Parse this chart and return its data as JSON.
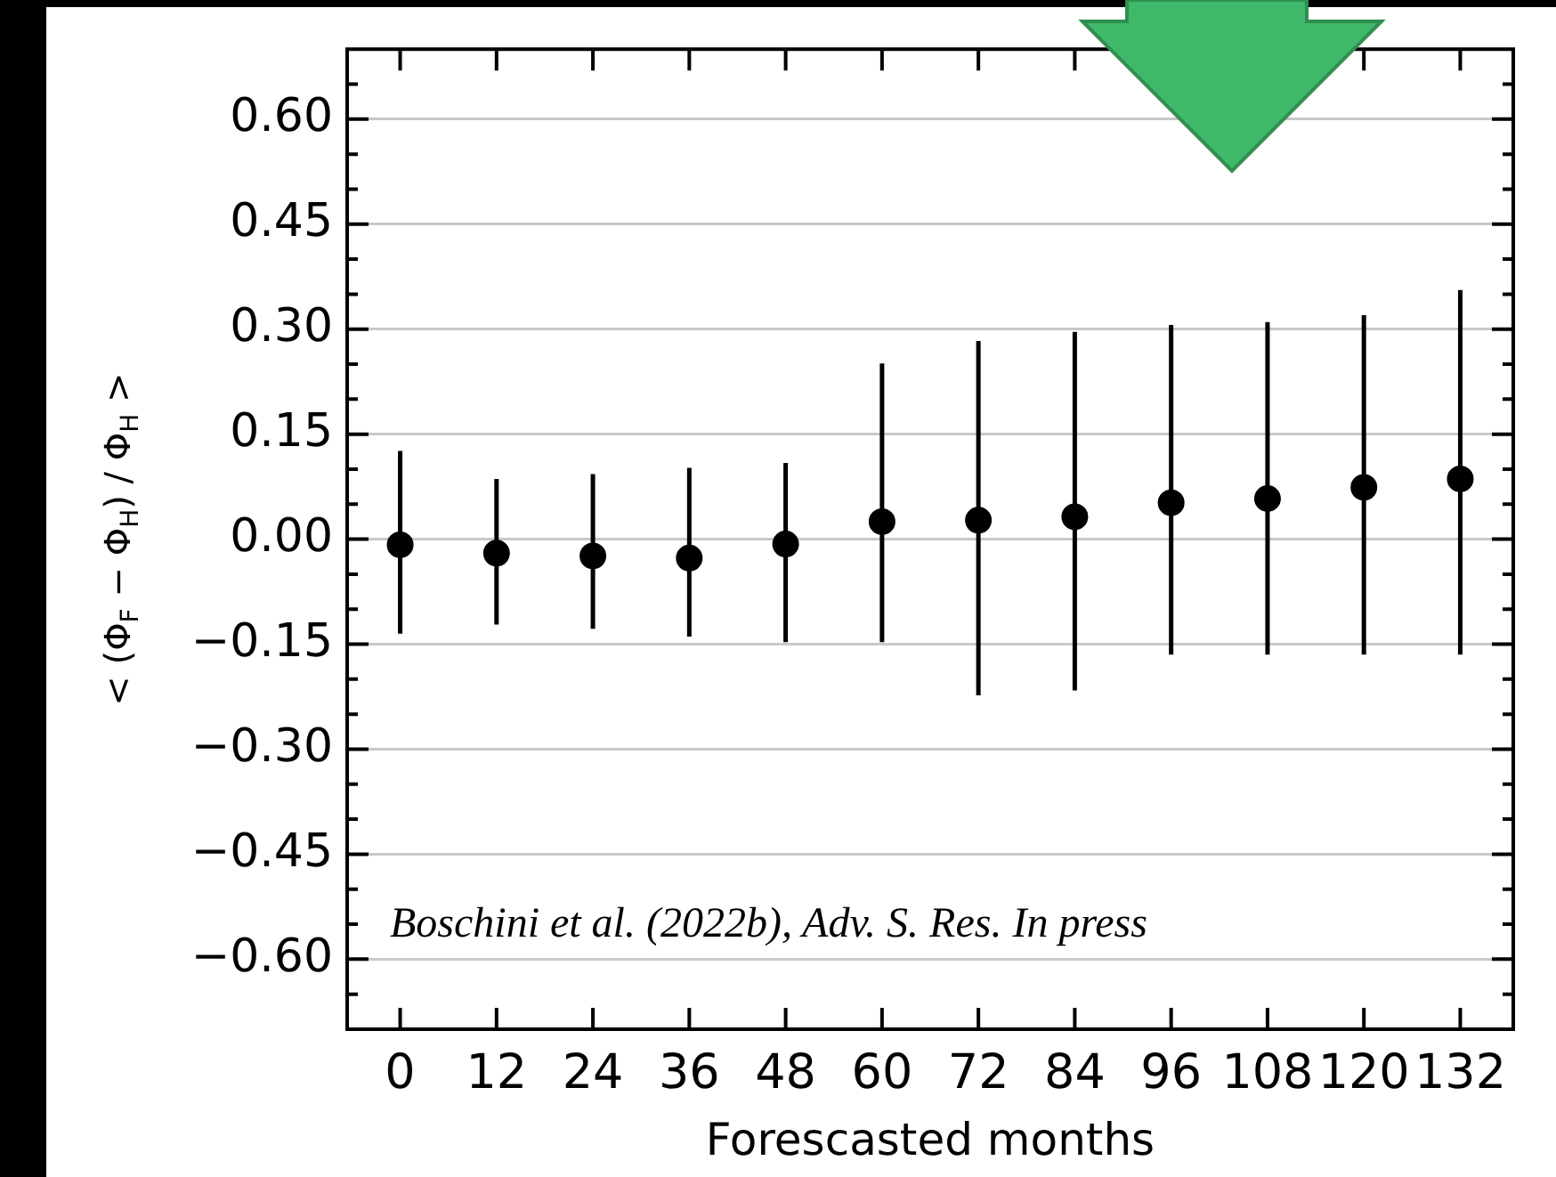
{
  "chart_data": {
    "type": "scatter",
    "xlabel": "Forescasted months",
    "ylabel": "< (Φ$_{F}$ − Φ$_{H}$) / Φ$_{H}$ >",
    "annotations": [
      "Boschini et al. (2022b), Adv. S. Res. In press"
    ],
    "x": [
      0,
      12,
      24,
      36,
      48,
      60,
      72,
      84,
      96,
      108,
      120,
      132
    ],
    "series": [
      {
        "color": "#000000",
        "values": [
          -0.008,
          -0.02,
          -0.024,
          -0.027,
          -0.007,
          0.025,
          0.027,
          0.032,
          0.052,
          0.058,
          0.074,
          0.086
        ],
        "errors": [
          [
            -0.135,
            0.126
          ],
          [
            -0.122,
            0.086
          ],
          [
            -0.128,
            0.093
          ],
          [
            -0.139,
            0.102
          ],
          [
            -0.147,
            0.109
          ],
          [
            -0.147,
            0.251
          ],
          [
            -0.223,
            0.283
          ],
          [
            -0.216,
            0.296
          ],
          [
            -0.165,
            0.306
          ],
          [
            -0.165,
            0.31
          ],
          [
            -0.165,
            0.32
          ],
          [
            -0.165,
            0.356
          ]
        ]
      }
    ],
    "xlim": [
      -6.6,
      138.6
    ],
    "xticks": [
      0,
      12,
      24,
      36,
      48,
      60,
      72,
      84,
      96,
      108,
      120,
      132
    ],
    "ylim": [
      -0.7,
      0.7
    ],
    "yticks": [
      {
        "value": -0.65,
        "label": null
      },
      {
        "value": -0.6,
        "label": "−0.60"
      },
      {
        "value": -0.55,
        "label": null
      },
      {
        "value": -0.5,
        "label": null
      },
      {
        "value": -0.45,
        "label": "−0.45"
      },
      {
        "value": -0.4,
        "label": null
      },
      {
        "value": -0.35,
        "label": null
      },
      {
        "value": -0.3,
        "label": "−0.30"
      },
      {
        "value": -0.25,
        "label": null
      },
      {
        "value": -0.2,
        "label": null
      },
      {
        "value": -0.15,
        "label": "−0.15"
      },
      {
        "value": -0.1,
        "label": null
      },
      {
        "value": -0.05,
        "label": null
      },
      {
        "value": 0,
        "label": "0.00"
      },
      {
        "value": 0.05,
        "label": null
      },
      {
        "value": 0.1,
        "label": null
      },
      {
        "value": 0.15,
        "label": "0.15"
      },
      {
        "value": 0.2,
        "label": null
      },
      {
        "value": 0.25,
        "label": null
      },
      {
        "value": 0.3,
        "label": "0.30"
      },
      {
        "value": 0.35,
        "label": null
      },
      {
        "value": 0.4,
        "label": null
      },
      {
        "value": 0.45,
        "label": "0.45"
      },
      {
        "value": 0.5,
        "label": null
      },
      {
        "value": 0.55,
        "label": null
      },
      {
        "value": 0.6,
        "label": "0.60"
      },
      {
        "value": 0.65,
        "label": null
      }
    ],
    "grid": "y",
    "marker": "circle",
    "legend": false
  }
}
